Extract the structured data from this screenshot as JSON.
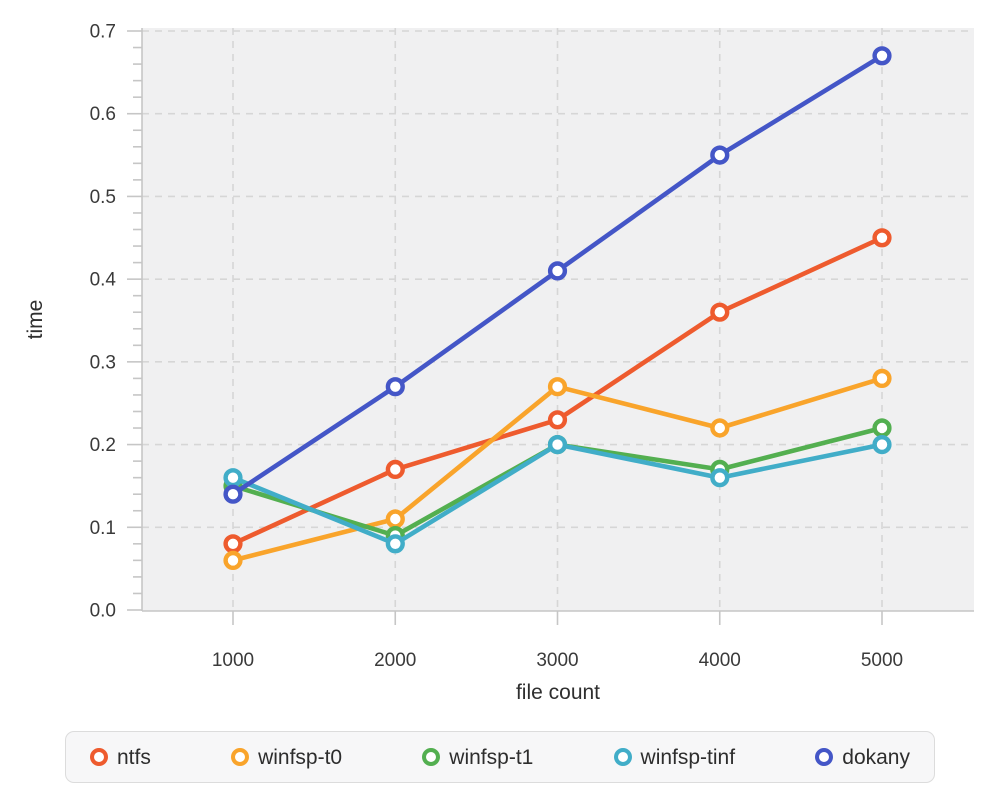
{
  "chart_data": {
    "type": "line",
    "x": [
      1000,
      2000,
      3000,
      4000,
      5000
    ],
    "series": [
      {
        "name": "ntfs",
        "color": "#EE5B2E",
        "values": [
          0.08,
          0.17,
          0.23,
          0.36,
          0.45
        ]
      },
      {
        "name": "winfsp-t0",
        "color": "#F9A42B",
        "values": [
          0.06,
          0.11,
          0.27,
          0.22,
          0.28
        ]
      },
      {
        "name": "winfsp-t1",
        "color": "#53AF50",
        "values": [
          0.15,
          0.09,
          0.2,
          0.17,
          0.22
        ]
      },
      {
        "name": "winfsp-tinf",
        "color": "#41ADC8",
        "values": [
          0.16,
          0.08,
          0.2,
          0.16,
          0.2
        ]
      },
      {
        "name": "dokany",
        "color": "#4456C7",
        "values": [
          0.14,
          0.27,
          0.41,
          0.55,
          0.67
        ]
      }
    ],
    "title": "",
    "xlabel": "file count",
    "ylabel": "time",
    "xlim": [
      450,
      5570
    ],
    "ylim": [
      0,
      0.7
    ],
    "xticks": [
      "1000",
      "2000",
      "3000",
      "4000",
      "5000"
    ],
    "xtick_values": [
      1000,
      2000,
      3000,
      4000,
      5000
    ],
    "yticks": [
      "0.0",
      "0.1",
      "0.2",
      "0.3",
      "0.4",
      "0.5",
      "0.6",
      "0.7"
    ],
    "ytick_values": [
      0,
      0.1,
      0.2,
      0.3,
      0.4,
      0.5,
      0.6,
      0.7
    ],
    "y_minor_tick_step": 0.02,
    "grid": "dashed",
    "legend_position": "bottom",
    "plot_background": "#f0f0f1",
    "gridline_color": "#d6d6d6",
    "axis_color": "#c6c6c6",
    "tick_label_color": "#3a3a3a",
    "marker": "open-circle"
  }
}
